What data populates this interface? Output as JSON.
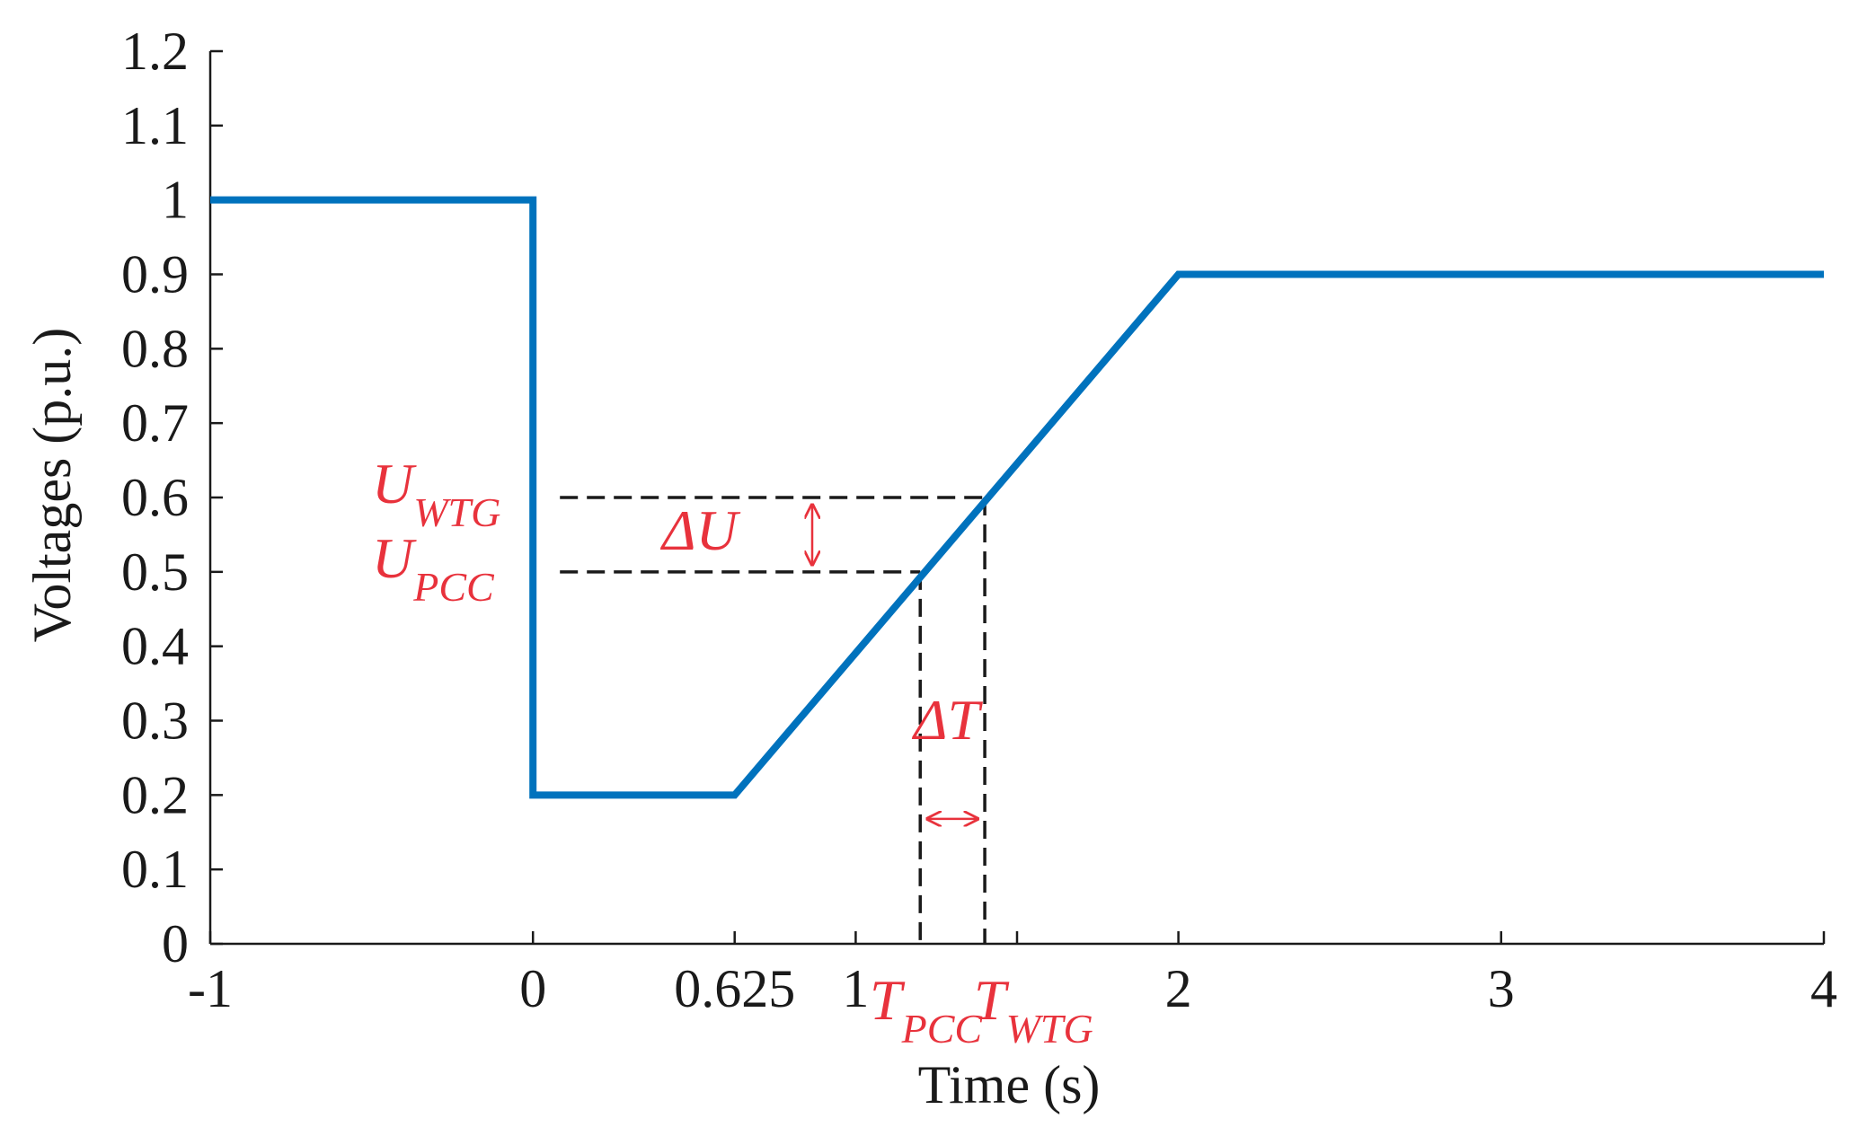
{
  "chart_data": {
    "type": "line",
    "xlabel": "Time (s)",
    "ylabel": "Voltages (p.u.)",
    "xlim": [
      -1,
      4
    ],
    "ylim": [
      0,
      1.2
    ],
    "x_ticks": [
      -1,
      0,
      0.625,
      1,
      2,
      3,
      4
    ],
    "x_tick_labels": [
      "-1",
      "0",
      "0.625",
      "1",
      "",
      "2",
      "3",
      "4"
    ],
    "x_tick_labels_shown": [
      "-1",
      "0",
      "0.625",
      "1",
      "2",
      "3",
      "4"
    ],
    "x_minor_ticks": [
      1.5
    ],
    "y_ticks": [
      0,
      0.1,
      0.2,
      0.3,
      0.4,
      0.5,
      0.6,
      0.7,
      0.8,
      0.9,
      1,
      1.1,
      1.2
    ],
    "y_tick_labels": [
      "0",
      "0.1",
      "0.2",
      "0.3",
      "0.4",
      "0.5",
      "0.6",
      "0.7",
      "0.8",
      "0.9",
      "1",
      "1.1",
      "1.2"
    ],
    "grid": false,
    "line_color": "#0072BD",
    "annotation_color": "#E8323C",
    "series": [
      {
        "x": [
          -1,
          0,
          0,
          0.625,
          2,
          4
        ],
        "y": [
          1.0,
          1.0,
          0.2,
          0.2,
          0.9,
          0.9
        ]
      }
    ],
    "reference_lines": {
      "u_wtg": 0.6,
      "u_pcc": 0.5,
      "t_pcc": 1.2,
      "t_wtg": 1.4
    },
    "annotations": {
      "u_wtg_main": "U",
      "u_wtg_sub": "WTG",
      "u_pcc_main": "U",
      "u_pcc_sub": "PCC",
      "delta_u": "ΔU",
      "delta_t": "ΔT",
      "t_pcc_main": "T",
      "t_pcc_sub": "PCC",
      "t_wtg_main": "T",
      "t_wtg_sub": "WTG"
    }
  }
}
